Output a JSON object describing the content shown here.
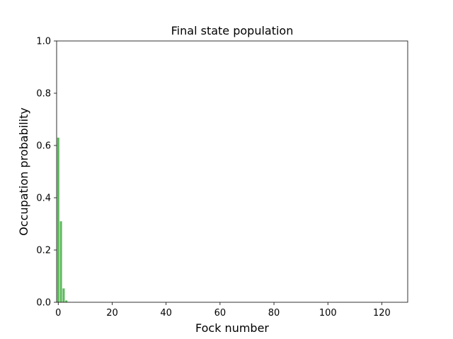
{
  "chart_data": {
    "type": "bar",
    "title": "Final state population",
    "xlabel": "Fock number",
    "ylabel": "Occupation probability",
    "xlim": [
      -0.6,
      129.6
    ],
    "ylim": [
      0,
      1
    ],
    "xticks": [
      0,
      20,
      40,
      60,
      80,
      100,
      120
    ],
    "xtick_labels": [
      "0",
      "20",
      "40",
      "60",
      "80",
      "100",
      "120"
    ],
    "yticks": [
      0,
      0.2,
      0.4,
      0.6,
      0.8,
      1.0
    ],
    "ytick_labels": [
      "0.0",
      "0.2",
      "0.4",
      "0.6",
      "0.8",
      "1.0"
    ],
    "grid": false,
    "bar_color": "#5cb85c",
    "bar_width": 0.8,
    "x": [
      0,
      1,
      2,
      3,
      4
    ],
    "values": [
      0.63,
      0.31,
      0.053,
      0.007,
      0.001
    ]
  }
}
